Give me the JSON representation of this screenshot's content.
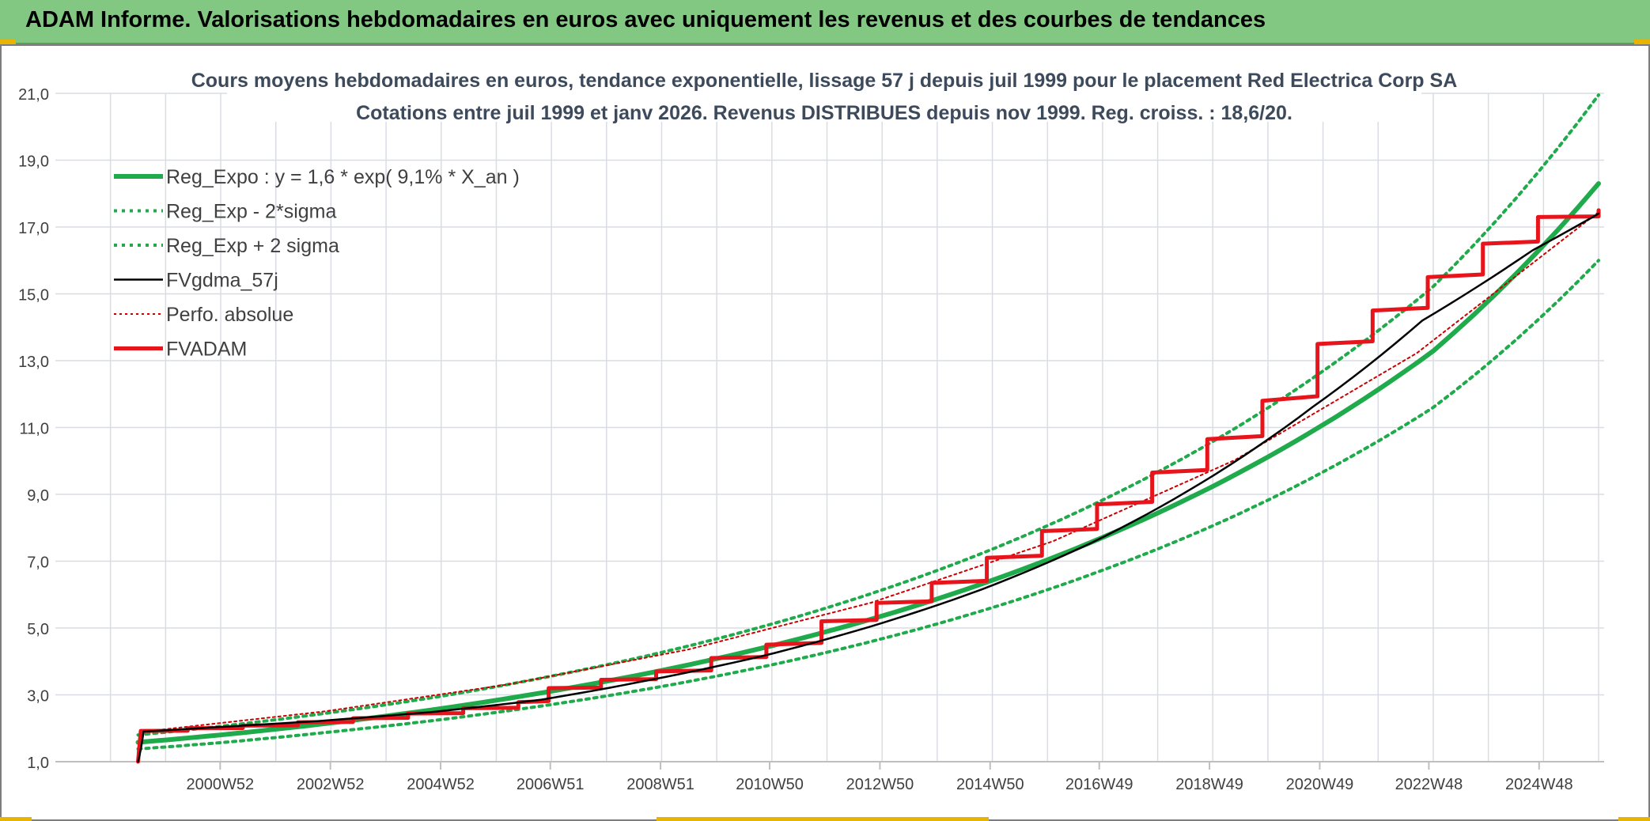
{
  "page": {
    "title": "ADAM Informe. Valorisations hebdomadaires en euros avec uniquement les revenus et des courbes de tendances"
  },
  "chart_data": {
    "type": "line",
    "title": "Cours moyens hebdomadaires en euros, tendance exponentielle, lissage 57 j depuis juil 1999 pour le placement Red Electrica Corp SA",
    "subtitle": "Cotations entre juil 1999 et janv 2026. Revenus DISTRIBUES depuis nov 1999. Reg. croiss. : 18,6/20.",
    "xlabel": "",
    "ylabel": "",
    "ylim": [
      1.0,
      21.0
    ],
    "yticks": [
      "1,0",
      "3,0",
      "5,0",
      "7,0",
      "9,0",
      "11,0",
      "13,0",
      "15,0",
      "17,0",
      "19,0",
      "21,0"
    ],
    "x_range": [
      "1999-07",
      "2026-01"
    ],
    "xticks": [
      "2000W52",
      "2002W52",
      "2004W52",
      "2006W51",
      "2008W51",
      "2010W50",
      "2012W50",
      "2014W50",
      "2016W49",
      "2018W49",
      "2020W49",
      "2022W48",
      "2024W48"
    ],
    "xtick_years": [
      2000.99,
      2002.99,
      2004.99,
      2006.98,
      2008.98,
      2010.96,
      2012.96,
      2014.96,
      2016.94,
      2018.94,
      2020.94,
      2022.92,
      2024.92
    ],
    "grid": true,
    "legend_position": "top-left",
    "series": [
      {
        "name": "Reg_Expo : y = 1,6 * exp( 9,1% *  X_an )",
        "color": "#1faa4b",
        "style": "solid-thick",
        "x": [
          1999.5,
          2001,
          2003,
          2005,
          2007,
          2009,
          2011,
          2013,
          2015,
          2017,
          2019,
          2021,
          2023,
          2026.0
        ],
        "y": [
          1.58,
          1.8,
          2.16,
          2.59,
          3.11,
          3.73,
          4.47,
          5.36,
          6.43,
          7.71,
          9.24,
          11.08,
          13.29,
          18.3
        ]
      },
      {
        "name": "Reg_Exp - 2*sigma",
        "color": "#1faa4b",
        "style": "dotted",
        "x": [
          1999.5,
          2001,
          2003,
          2005,
          2007,
          2009,
          2011,
          2013,
          2015,
          2017,
          2019,
          2021,
          2023,
          2026.0
        ],
        "y": [
          1.38,
          1.57,
          1.89,
          2.26,
          2.71,
          3.25,
          3.9,
          4.68,
          5.61,
          6.73,
          8.06,
          9.67,
          11.6,
          16.0
        ]
      },
      {
        "name": "Reg_Exp + 2 sigma",
        "color": "#1faa4b",
        "style": "dotted",
        "x": [
          1999.5,
          2001,
          2003,
          2005,
          2007,
          2009,
          2011,
          2013,
          2015,
          2017,
          2019,
          2021,
          2023,
          2026.0
        ],
        "y": [
          1.8,
          2.06,
          2.47,
          2.96,
          3.56,
          4.27,
          5.12,
          6.14,
          7.36,
          8.83,
          10.58,
          12.69,
          15.22,
          20.95
        ]
      },
      {
        "name": "FVgdma_57j",
        "color": "#000000",
        "style": "solid-thin",
        "x": [
          1999.5,
          1999.6,
          2000.8,
          2002.8,
          2004.8,
          2006.8,
          2008.8,
          2010.8,
          2012.8,
          2014.8,
          2016.8,
          2018.8,
          2020.8,
          2022.8,
          2024.8,
          2026.0
        ],
        "y": [
          1.0,
          1.9,
          2.02,
          2.22,
          2.48,
          2.85,
          3.45,
          4.15,
          5.05,
          6.15,
          7.55,
          9.35,
          11.6,
          14.2,
          16.3,
          17.4
        ]
      },
      {
        "name": "Perfo. absolue",
        "color": "#cc0000",
        "style": "dotted-thin",
        "x": [
          1999.5,
          1999.6,
          2026.0
        ],
        "y": [
          1.0,
          1.9,
          17.45
        ]
      },
      {
        "name": "FVADAM",
        "color": "#e8141c",
        "style": "step-thick",
        "x": [
          1999.5,
          1999.55,
          2000.4,
          2001.4,
          2002.4,
          2003.4,
          2004.4,
          2005.4,
          2006.4,
          2006.95,
          2007.9,
          2008.9,
          2009.9,
          2010.9,
          2011.9,
          2012.9,
          2013.9,
          2014.9,
          2015.9,
          2016.9,
          2017.9,
          2018.9,
          2019.9,
          2020.9,
          2021.9,
          2022.9,
          2023.9,
          2024.9,
          2026.0
        ],
        "y": [
          1.0,
          1.92,
          2.0,
          2.08,
          2.18,
          2.3,
          2.44,
          2.6,
          2.78,
          3.2,
          3.45,
          3.7,
          4.1,
          4.5,
          5.2,
          5.75,
          6.35,
          7.1,
          7.9,
          8.7,
          9.65,
          10.65,
          11.8,
          13.5,
          14.5,
          15.5,
          16.5,
          17.3,
          17.5
        ]
      }
    ]
  }
}
